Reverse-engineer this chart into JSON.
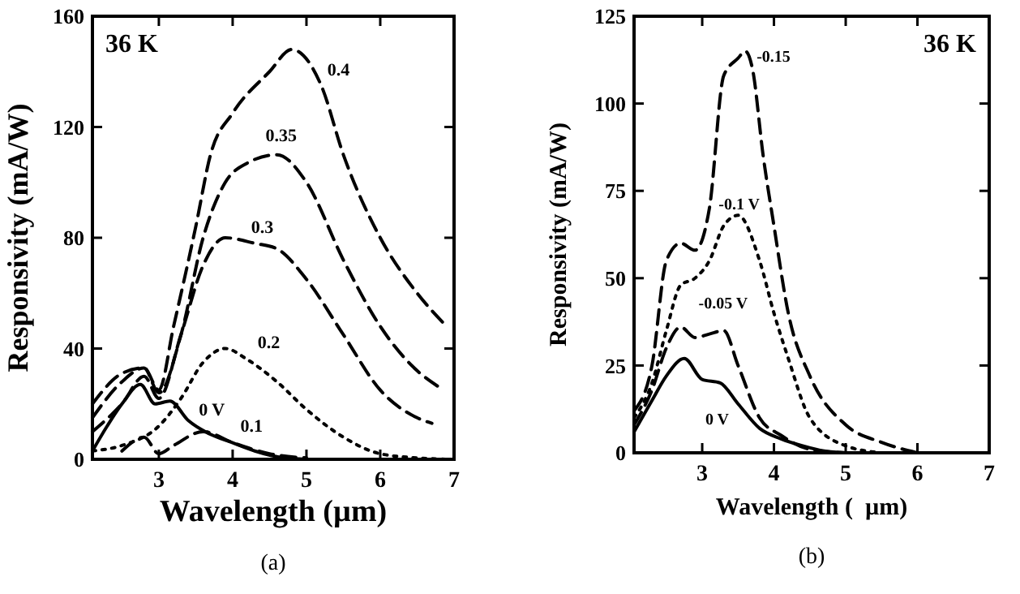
{
  "chart_data": [
    {
      "type": "line",
      "xlabel": "Wavelength (µm)",
      "ylabel": "Responsivity (mA/W)",
      "xlim": [
        2.1,
        7
      ],
      "ylim": [
        0,
        160
      ],
      "xticks": [
        3,
        4,
        5,
        6,
        7
      ],
      "yticks": [
        0,
        40,
        80,
        120,
        160
      ],
      "annotations": [
        "36 K",
        "(a)"
      ],
      "series": [
        {
          "name": "0.4",
          "color": "#000000",
          "line_style": "dashed",
          "x": [
            2.1,
            2.5,
            2.8,
            3.0,
            3.2,
            3.5,
            3.7,
            4.0,
            4.5,
            4.8,
            5.2,
            5.5,
            6.0,
            6.5,
            6.9
          ],
          "values": [
            20,
            31,
            33,
            25,
            48,
            84,
            110,
            125,
            140,
            148,
            135,
            110,
            80,
            60,
            48
          ]
        },
        {
          "name": "0.35",
          "color": "#000000",
          "line_style": "dashed",
          "x": [
            2.1,
            2.5,
            2.8,
            3.0,
            3.3,
            3.6,
            3.9,
            4.2,
            4.6,
            5.0,
            5.5,
            6.0,
            6.5,
            6.8
          ],
          "values": [
            15,
            28,
            33,
            24,
            45,
            80,
            100,
            107,
            110,
            100,
            72,
            48,
            32,
            26
          ]
        },
        {
          "name": "0.3",
          "color": "#000000",
          "line_style": "dashed",
          "x": [
            2.1,
            2.5,
            2.8,
            3.0,
            3.3,
            3.6,
            3.9,
            4.3,
            4.6,
            5.0,
            5.5,
            6.0,
            6.5,
            6.7
          ],
          "values": [
            10,
            20,
            30,
            22,
            45,
            70,
            80,
            78,
            76,
            65,
            45,
            25,
            15,
            13
          ]
        },
        {
          "name": "0.2",
          "color": "#000000",
          "line_style": "dotted",
          "x": [
            2.1,
            2.5,
            3.0,
            3.3,
            3.6,
            3.9,
            4.2,
            4.6,
            5.0,
            5.5,
            6.0,
            6.5,
            6.9
          ],
          "values": [
            3,
            5,
            12,
            22,
            35,
            40,
            36,
            28,
            18,
            8,
            2,
            0.5,
            0
          ]
        },
        {
          "name": "0.1",
          "color": "#000000",
          "line_style": "dashed",
          "x": [
            2.5,
            2.8,
            3.0,
            3.2,
            3.6,
            4.0,
            4.5,
            5.0
          ],
          "values": [
            3,
            8,
            2,
            5,
            10,
            6,
            2,
            0.5
          ]
        },
        {
          "name": "0 V",
          "color": "#000000",
          "line_style": "solid",
          "x": [
            2.1,
            2.3,
            2.5,
            2.75,
            2.95,
            3.15,
            3.4,
            3.7,
            4.0,
            4.3,
            4.7,
            5.0
          ],
          "values": [
            3,
            12,
            20,
            27,
            20,
            21,
            14,
            9,
            6,
            3,
            0.5,
            0
          ]
        }
      ]
    },
    {
      "type": "line",
      "xlabel": "Wavelength (  µm)",
      "ylabel": "Responsivity (mA/W)",
      "xlim": [
        2.05,
        7
      ],
      "ylim": [
        0,
        125
      ],
      "xticks": [
        3,
        4,
        5,
        6,
        7
      ],
      "yticks": [
        0,
        25,
        50,
        75,
        100,
        125
      ],
      "annotations": [
        "36 K",
        "(b)"
      ],
      "series": [
        {
          "name": "-0.15",
          "color": "#000000",
          "line_style": "dashed",
          "x": [
            2.05,
            2.3,
            2.5,
            2.7,
            2.9,
            3.1,
            3.3,
            3.5,
            3.6,
            3.7,
            3.85,
            4.0,
            4.2,
            4.5,
            5.0,
            5.5,
            6.0
          ],
          "values": [
            12,
            25,
            55,
            60,
            58,
            70,
            108,
            113,
            115,
            110,
            85,
            65,
            40,
            22,
            8,
            3,
            0
          ]
        },
        {
          "name": "-0.1 V",
          "color": "#000000",
          "line_style": "dotted",
          "x": [
            2.05,
            2.3,
            2.5,
            2.7,
            2.9,
            3.1,
            3.3,
            3.5,
            3.8,
            4.0,
            4.2,
            4.5,
            5.0,
            5.5
          ],
          "values": [
            10,
            20,
            35,
            48,
            50,
            55,
            65,
            68,
            55,
            40,
            27,
            10,
            2,
            0
          ]
        },
        {
          "name": "-0.05 V",
          "color": "#000000",
          "line_style": "dashed",
          "x": [
            2.05,
            2.3,
            2.5,
            2.7,
            2.9,
            3.1,
            3.3,
            3.5,
            3.8,
            4.1,
            4.5,
            5.0
          ],
          "values": [
            8,
            18,
            30,
            36,
            33,
            34,
            35,
            25,
            10,
            5,
            1,
            0
          ]
        },
        {
          "name": "0 V",
          "color": "#000000",
          "line_style": "solid",
          "x": [
            2.05,
            2.3,
            2.5,
            2.75,
            3.0,
            3.25,
            3.5,
            3.8,
            4.1,
            4.4,
            4.7,
            5.0
          ],
          "values": [
            6,
            15,
            22,
            27,
            21,
            20,
            14,
            7,
            4,
            2,
            0.5,
            0
          ]
        }
      ]
    }
  ]
}
